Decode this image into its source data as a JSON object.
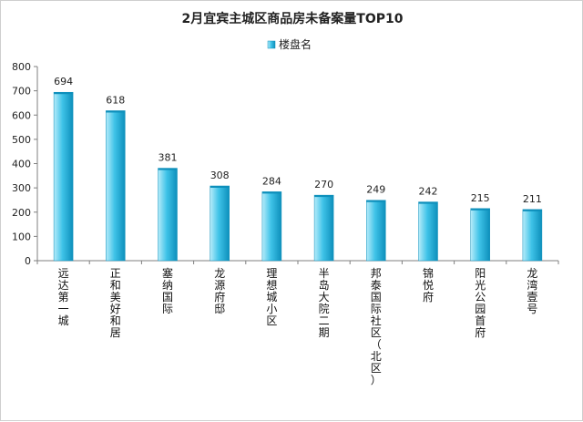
{
  "chart_data": {
    "type": "bar",
    "title": "2月宜宾主城区商品房未备案量TOP10",
    "legend": {
      "entries": [
        "楼盘名"
      ],
      "placement": "top"
    },
    "categories": [
      "远达第一城",
      "正和美好和居",
      "塞纳国际",
      "龙源府邸",
      "理想城小区",
      "半岛大院二期",
      "邦泰国际社区（北区）",
      "锦悦府",
      "阳光公园首府",
      "龙湾壹号"
    ],
    "series": [
      {
        "name": "楼盘名",
        "values": [
          694,
          618,
          381,
          308,
          284,
          270,
          249,
          242,
          215,
          211
        ]
      }
    ],
    "ylim": [
      0,
      800
    ],
    "yticks": [
      0,
      100,
      200,
      300,
      400,
      500,
      600,
      700,
      800
    ],
    "xlabel": "",
    "ylabel": "",
    "grid": false,
    "colors": {
      "bar_light": "#b7ecfa",
      "bar_mid": "#3fc3e8",
      "bar_dark": "#0d8fbb",
      "axis": "#7f7f7f"
    }
  }
}
